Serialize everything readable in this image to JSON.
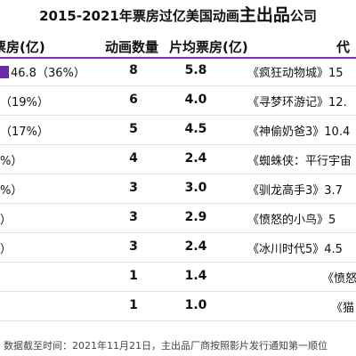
{
  "title": {
    "prefix": "2015-2021年票房过亿美国动画",
    "emphasis": "主出品",
    "suffix": "公司"
  },
  "columns": {
    "share_header": "票房(亿)",
    "count_header": "动画数量",
    "avg_header": "片均票房(亿)",
    "film_header": "代"
  },
  "rows": [
    {
      "share_text": "46.8（36%）",
      "share_fraction": 0.36,
      "count": "8",
      "avg": "5.8",
      "film": "《疯狂动物城》15"
    },
    {
      "share_text": "（19%）",
      "share_fraction": 0.19,
      "count": "6",
      "avg": "4.0",
      "film": "《寻梦环游记》12."
    },
    {
      "share_text": "（17%）",
      "share_fraction": 0.17,
      "count": "5",
      "avg": "4.5",
      "film": "《神偷奶爸3》10.4"
    },
    {
      "share_text": "%）",
      "count": "4",
      "avg": "2.4",
      "film": "《蜘蛛侠：平行宇宙"
    },
    {
      "share_text": "%）",
      "count": "3",
      "avg": "3.0",
      "film": "《驯龙高手3》3.7"
    },
    {
      "share_text": "）",
      "count": "3",
      "avg": "2.9",
      "film": "《愤怒的小鸟》5"
    },
    {
      "share_text": "）",
      "count": "3",
      "avg": "2.4",
      "film": "《冰川时代5》4.5"
    },
    {
      "share_text": "",
      "count": "1",
      "avg": "1.4",
      "film": "《愤怒"
    },
    {
      "share_text": "",
      "count": "1",
      "avg": "1.0",
      "film": "《猫"
    }
  ],
  "footer": "数据截至时间：2021年11月21日，主出品厂商按照影片发行通知第一顺位",
  "colors": {
    "accent": "#6a2aa8"
  }
}
